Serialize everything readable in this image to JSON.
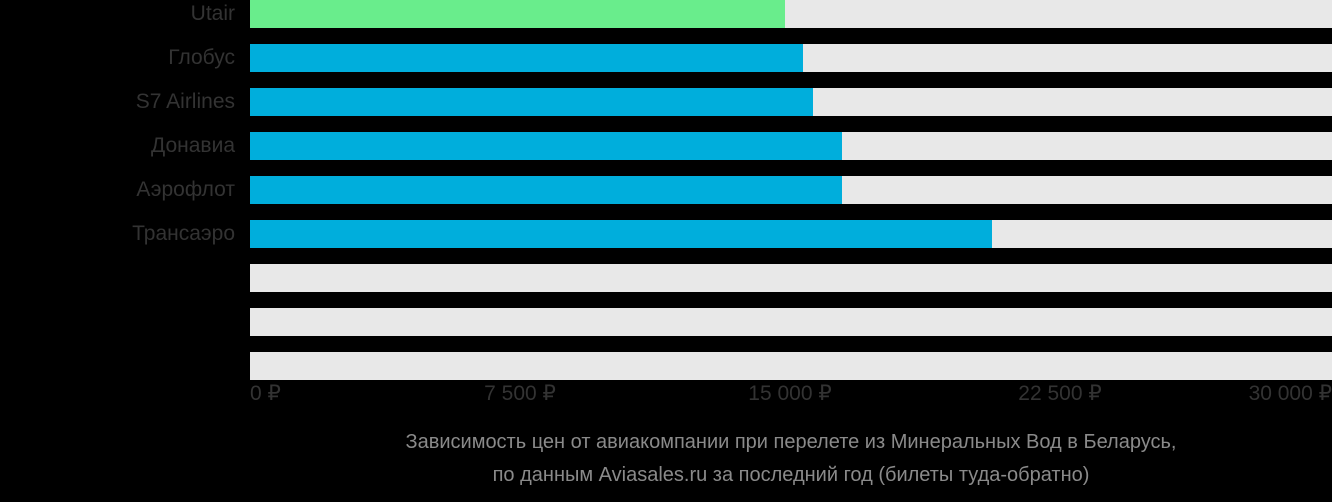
{
  "chart_data": {
    "type": "bar",
    "orientation": "horizontal",
    "title": "Зависимость цен от авиакомпании при перелете из Минеральных Вод в Беларусь,",
    "subtitle": "по данным Aviasales.ru за последний год (билеты туда-обратно)",
    "categories": [
      "Utair",
      "Глобус",
      "S7 Airlines",
      "Донавиа",
      "Аэрофлот",
      "Трансаэро",
      "",
      "",
      ""
    ],
    "values": [
      14850,
      15350,
      15650,
      16450,
      16450,
      20600,
      0,
      0,
      0
    ],
    "bar_colors": [
      "#69ED8C",
      "#00AEDC",
      "#00AEDC",
      "#00AEDC",
      "#00AEDC",
      "#00AEDC",
      null,
      null,
      null
    ],
    "x_ticks": [
      {
        "value": 0,
        "label": "0 ₽"
      },
      {
        "value": 7500,
        "label": "7 500 ₽"
      },
      {
        "value": 15000,
        "label": "15 000 ₽"
      },
      {
        "value": 22500,
        "label": "22 500 ₽"
      },
      {
        "value": 30000,
        "label": "30 000 ₽"
      }
    ],
    "xlim": [
      0,
      30000
    ],
    "ylabel": "",
    "xlabel": "",
    "grid": false,
    "legend": false,
    "currency": "₽"
  },
  "colors": {
    "background": "#000000",
    "track": "#E8E8E8",
    "green_bar": "#69ED8C",
    "cyan_bar": "#00AEDC",
    "category_label": "#333333",
    "axis_label": "#333333",
    "title_text": "#8A8A8A"
  }
}
